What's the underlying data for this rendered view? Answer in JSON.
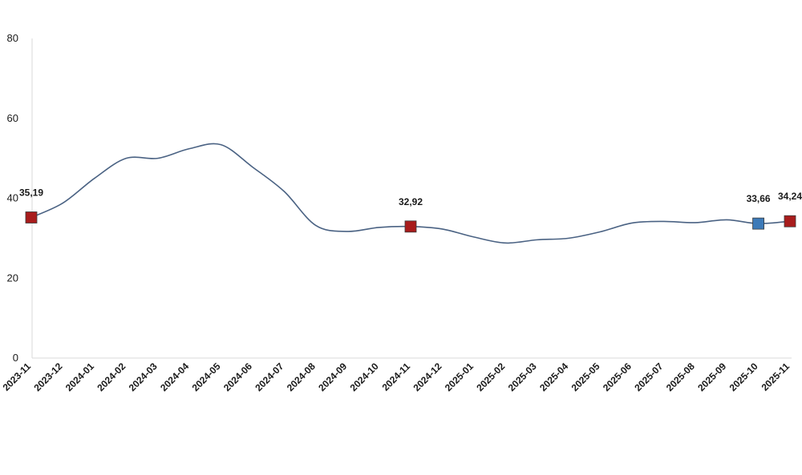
{
  "chart_data": {
    "type": "line",
    "title": "",
    "xlabel": "",
    "ylabel": "",
    "ylim": [
      0,
      80
    ],
    "yticks": [
      0,
      20,
      40,
      60,
      80
    ],
    "grid": false,
    "categories": [
      "2023-11",
      "2023-12",
      "2024-01",
      "2024-02",
      "2024-03",
      "2024-04",
      "2024-05",
      "2024-06",
      "2024-07",
      "2024-08",
      "2024-09",
      "2024-10",
      "2024-11",
      "2024-12",
      "2025-01",
      "2025-02",
      "2025-03",
      "2025-04",
      "2025-05",
      "2025-06",
      "2025-07",
      "2025-08",
      "2025-09",
      "2025-10",
      "2025-11"
    ],
    "series": [
      {
        "color": "#4a6283",
        "values": [
          35.19,
          38.8,
          45.0,
          50.0,
          50.0,
          52.4,
          53.4,
          47.8,
          41.7,
          33.2,
          31.7,
          32.7,
          32.92,
          32.3,
          30.3,
          28.8,
          29.6,
          30.0,
          31.6,
          33.8,
          34.2,
          33.9,
          34.6,
          33.66,
          34.24
        ]
      }
    ],
    "highlighted_points": [
      {
        "category": "2023-11",
        "value": 35.19,
        "label": "35,19",
        "color": "#a81c1c"
      },
      {
        "category": "2024-11",
        "value": 32.92,
        "label": "32,92",
        "color": "#a81c1c"
      },
      {
        "category": "2025-10",
        "value": 33.66,
        "label": "33,66",
        "color": "#3d7ab8"
      },
      {
        "category": "2025-11",
        "value": 34.24,
        "label": "34,24",
        "color": "#a81c1c"
      }
    ]
  }
}
